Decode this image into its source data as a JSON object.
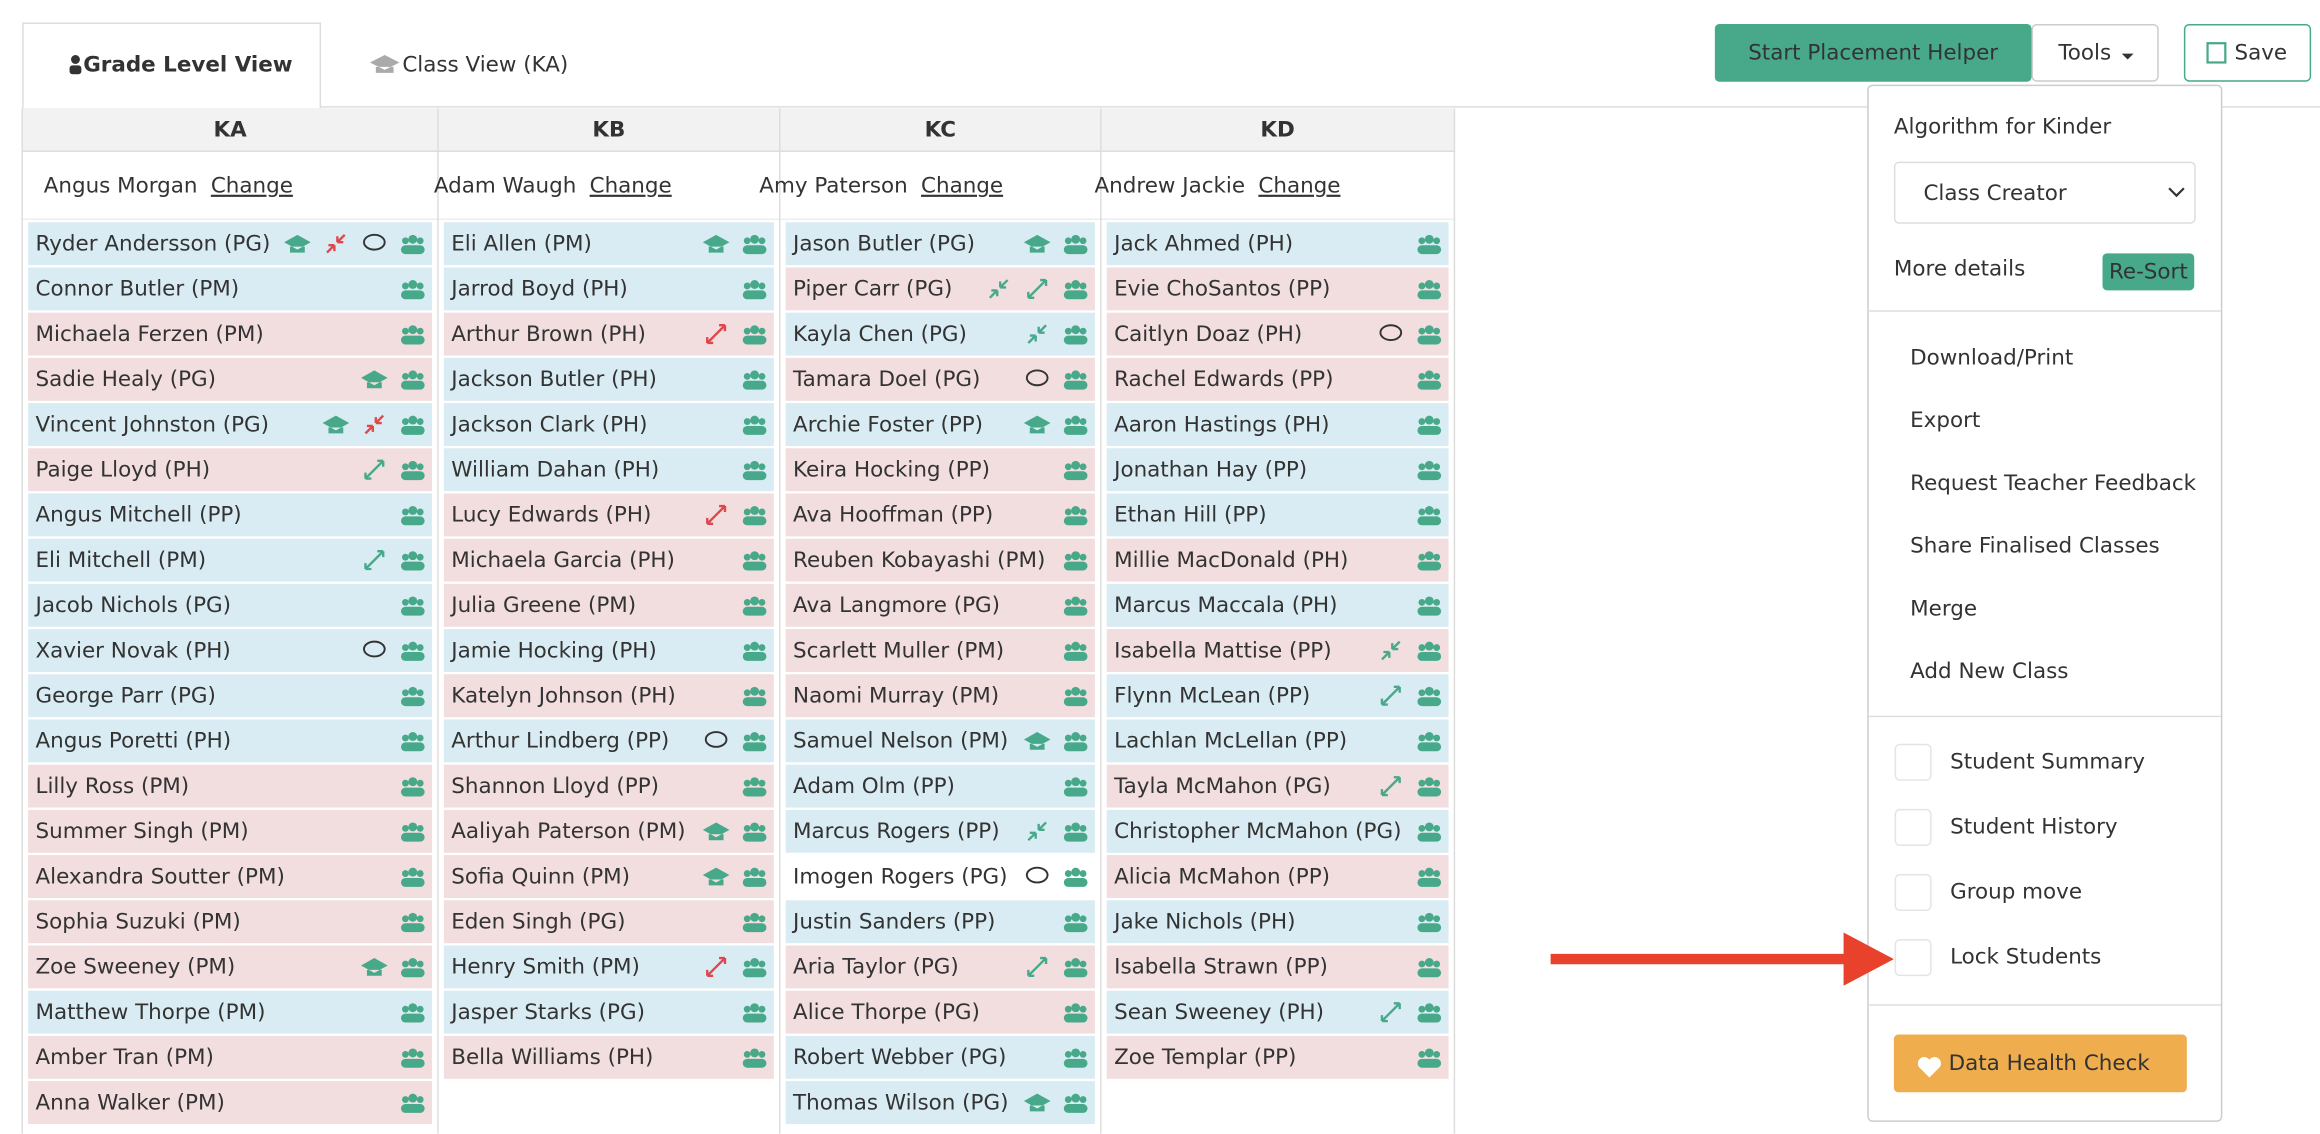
{
  "tabs": [
    {
      "label": "Grade Level View",
      "active": true
    },
    {
      "label": "Class View (KA)",
      "active": false
    }
  ],
  "toolbar": {
    "placement": "Start Placement Helper",
    "tools": "Tools",
    "save": "Save"
  },
  "columns": [
    {
      "code": "KA",
      "teacher": "Angus Morgan",
      "change": "Change",
      "students": [
        {
          "name": "Ryder Andersson (PG)",
          "bg": "blue",
          "icons": [
            "cap",
            "split-red",
            "chat",
            "group"
          ]
        },
        {
          "name": "Connor Butler (PM)",
          "bg": "blue",
          "icons": [
            "group"
          ]
        },
        {
          "name": "Michaela Ferzen (PM)",
          "bg": "pink",
          "icons": [
            "group"
          ]
        },
        {
          "name": "Sadie Healy (PG)",
          "bg": "pink",
          "icons": [
            "cap",
            "group"
          ]
        },
        {
          "name": "Vincent Johnston (PG)",
          "bg": "blue",
          "icons": [
            "cap",
            "split-red",
            "group"
          ]
        },
        {
          "name": "Paige Lloyd (PH)",
          "bg": "pink",
          "icons": [
            "expand-green",
            "group"
          ]
        },
        {
          "name": "Angus Mitchell (PP)",
          "bg": "blue",
          "icons": [
            "group"
          ]
        },
        {
          "name": "Eli Mitchell (PM)",
          "bg": "blue",
          "icons": [
            "expand-green",
            "group"
          ]
        },
        {
          "name": "Jacob Nichols (PG)",
          "bg": "blue",
          "icons": [
            "group"
          ]
        },
        {
          "name": "Xavier Novak (PH)",
          "bg": "blue",
          "icons": [
            "chat",
            "group"
          ]
        },
        {
          "name": "George Parr (PG)",
          "bg": "blue",
          "icons": [
            "group"
          ]
        },
        {
          "name": "Angus Poretti (PH)",
          "bg": "blue",
          "icons": [
            "group"
          ]
        },
        {
          "name": "Lilly Ross (PM)",
          "bg": "pink",
          "icons": [
            "group"
          ]
        },
        {
          "name": "Summer Singh (PM)",
          "bg": "pink",
          "icons": [
            "group"
          ]
        },
        {
          "name": "Alexandra Soutter (PM)",
          "bg": "pink",
          "icons": [
            "group"
          ]
        },
        {
          "name": "Sophia Suzuki (PM)",
          "bg": "pink",
          "icons": [
            "group"
          ]
        },
        {
          "name": "Zoe Sweeney (PM)",
          "bg": "pink",
          "icons": [
            "cap",
            "group"
          ]
        },
        {
          "name": "Matthew Thorpe (PM)",
          "bg": "blue",
          "icons": [
            "group"
          ]
        },
        {
          "name": "Amber Tran (PM)",
          "bg": "pink",
          "icons": [
            "group"
          ]
        },
        {
          "name": "Anna Walker (PM)",
          "bg": "pink",
          "icons": [
            "group"
          ]
        }
      ]
    },
    {
      "code": "KB",
      "teacher": "Adam Waugh",
      "change": "Change",
      "students": [
        {
          "name": "Eli Allen (PM)",
          "bg": "blue",
          "icons": [
            "cap",
            "group"
          ]
        },
        {
          "name": "Jarrod Boyd (PH)",
          "bg": "blue",
          "icons": [
            "group"
          ]
        },
        {
          "name": "Arthur Brown (PH)",
          "bg": "pink",
          "icons": [
            "expand-red",
            "group"
          ]
        },
        {
          "name": "Jackson Butler (PH)",
          "bg": "blue",
          "icons": [
            "group"
          ]
        },
        {
          "name": "Jackson Clark (PH)",
          "bg": "blue",
          "icons": [
            "group"
          ]
        },
        {
          "name": "William Dahan (PH)",
          "bg": "blue",
          "icons": [
            "group"
          ]
        },
        {
          "name": "Lucy Edwards (PH)",
          "bg": "pink",
          "icons": [
            "expand-red",
            "group"
          ]
        },
        {
          "name": "Michaela Garcia (PH)",
          "bg": "pink",
          "icons": [
            "group"
          ]
        },
        {
          "name": "Julia Greene (PM)",
          "bg": "pink",
          "icons": [
            "group"
          ]
        },
        {
          "name": "Jamie Hocking (PH)",
          "bg": "blue",
          "icons": [
            "group"
          ]
        },
        {
          "name": "Katelyn Johnson (PH)",
          "bg": "pink",
          "icons": [
            "group"
          ]
        },
        {
          "name": "Arthur Lindberg (PP)",
          "bg": "blue",
          "icons": [
            "chat",
            "group"
          ]
        },
        {
          "name": "Shannon Lloyd (PP)",
          "bg": "pink",
          "icons": [
            "group"
          ]
        },
        {
          "name": "Aaliyah Paterson (PM)",
          "bg": "pink",
          "icons": [
            "cap",
            "group"
          ]
        },
        {
          "name": "Sofia Quinn (PM)",
          "bg": "pink",
          "icons": [
            "cap",
            "group"
          ]
        },
        {
          "name": "Eden Singh (PG)",
          "bg": "pink",
          "icons": [
            "group"
          ]
        },
        {
          "name": "Henry Smith (PM)",
          "bg": "blue",
          "icons": [
            "expand-red",
            "group"
          ]
        },
        {
          "name": "Jasper Starks (PG)",
          "bg": "blue",
          "icons": [
            "group"
          ]
        },
        {
          "name": "Bella Williams (PH)",
          "bg": "pink",
          "icons": [
            "group"
          ]
        }
      ]
    },
    {
      "code": "KC",
      "teacher": "Amy Paterson",
      "change": "Change",
      "students": [
        {
          "name": "Jason Butler (PG)",
          "bg": "blue",
          "icons": [
            "cap",
            "group"
          ]
        },
        {
          "name": "Piper Carr (PG)",
          "bg": "pink",
          "icons": [
            "split-green",
            "expand-green",
            "group"
          ]
        },
        {
          "name": "Kayla Chen (PG)",
          "bg": "blue",
          "icons": [
            "split-green",
            "group"
          ]
        },
        {
          "name": "Tamara Doel (PG)",
          "bg": "pink",
          "icons": [
            "chat",
            "group"
          ]
        },
        {
          "name": "Archie Foster (PP)",
          "bg": "blue",
          "icons": [
            "cap",
            "group"
          ]
        },
        {
          "name": "Keira Hocking (PP)",
          "bg": "pink",
          "icons": [
            "group"
          ]
        },
        {
          "name": "Ava Hooffman (PP)",
          "bg": "pink",
          "icons": [
            "group"
          ]
        },
        {
          "name": "Reuben Kobayashi (PM)",
          "bg": "pink",
          "icons": [
            "group"
          ]
        },
        {
          "name": "Ava Langmore (PG)",
          "bg": "pink",
          "icons": [
            "group"
          ]
        },
        {
          "name": "Scarlett Muller (PM)",
          "bg": "pink",
          "icons": [
            "group"
          ]
        },
        {
          "name": "Naomi Murray (PM)",
          "bg": "pink",
          "icons": [
            "group"
          ]
        },
        {
          "name": "Samuel Nelson (PM)",
          "bg": "blue",
          "icons": [
            "cap",
            "group"
          ]
        },
        {
          "name": "Adam Olm (PP)",
          "bg": "blue",
          "icons": [
            "group"
          ]
        },
        {
          "name": "Marcus Rogers (PP)",
          "bg": "blue",
          "icons": [
            "split-green",
            "group"
          ]
        },
        {
          "name": "Imogen Rogers (PG)",
          "bg": "white",
          "icons": [
            "chat",
            "group"
          ]
        },
        {
          "name": "Justin Sanders (PP)",
          "bg": "blue",
          "icons": [
            "group"
          ]
        },
        {
          "name": "Aria Taylor (PG)",
          "bg": "pink",
          "icons": [
            "expand-green",
            "group"
          ]
        },
        {
          "name": "Alice Thorpe (PG)",
          "bg": "pink",
          "icons": [
            "group"
          ]
        },
        {
          "name": "Robert Webber (PG)",
          "bg": "blue",
          "icons": [
            "group"
          ]
        },
        {
          "name": "Thomas Wilson (PG)",
          "bg": "blue",
          "icons": [
            "cap",
            "group"
          ]
        }
      ]
    },
    {
      "code": "KD",
      "teacher": "Andrew Jackie",
      "change": "Change",
      "students": [
        {
          "name": "Jack Ahmed (PH)",
          "bg": "blue",
          "icons": [
            "group"
          ]
        },
        {
          "name": "Evie ChoSantos (PP)",
          "bg": "pink",
          "icons": [
            "group"
          ]
        },
        {
          "name": "Caitlyn Doaz (PH)",
          "bg": "pink",
          "icons": [
            "chat",
            "group"
          ]
        },
        {
          "name": "Rachel Edwards (PP)",
          "bg": "pink",
          "icons": [
            "group"
          ]
        },
        {
          "name": "Aaron Hastings (PH)",
          "bg": "blue",
          "icons": [
            "group"
          ]
        },
        {
          "name": "Jonathan Hay (PP)",
          "bg": "blue",
          "icons": [
            "group"
          ]
        },
        {
          "name": "Ethan Hill (PP)",
          "bg": "blue",
          "icons": [
            "group"
          ]
        },
        {
          "name": "Millie MacDonald (PH)",
          "bg": "pink",
          "icons": [
            "group"
          ]
        },
        {
          "name": "Marcus Maccala (PH)",
          "bg": "blue",
          "icons": [
            "group"
          ]
        },
        {
          "name": "Isabella Mattise (PP)",
          "bg": "pink",
          "icons": [
            "split-green",
            "group"
          ]
        },
        {
          "name": "Flynn McLean (PP)",
          "bg": "blue",
          "icons": [
            "expand-green",
            "group"
          ]
        },
        {
          "name": "Lachlan McLellan (PP)",
          "bg": "blue",
          "icons": [
            "group"
          ]
        },
        {
          "name": "Tayla McMahon (PG)",
          "bg": "pink",
          "icons": [
            "expand-green",
            "group"
          ]
        },
        {
          "name": "Christopher McMahon (PG)",
          "bg": "blue",
          "icons": [
            "group"
          ]
        },
        {
          "name": "Alicia McMahon (PP)",
          "bg": "pink",
          "icons": [
            "group"
          ]
        },
        {
          "name": "Jake Nichols (PH)",
          "bg": "blue",
          "icons": [
            "group"
          ]
        },
        {
          "name": "Isabella Strawn (PP)",
          "bg": "pink",
          "icons": [
            "group"
          ]
        },
        {
          "name": "Sean Sweeney (PH)",
          "bg": "blue",
          "icons": [
            "expand-green",
            "group"
          ]
        },
        {
          "name": "Zoe Templar (PP)",
          "bg": "pink",
          "icons": [
            "group"
          ]
        }
      ]
    }
  ],
  "panel": {
    "algorithm_label": "Algorithm for Kinder",
    "algorithm": "Class Creator",
    "more_details": "More details",
    "resort": "Re-Sort",
    "menu": [
      "Download/Print",
      "Export",
      "Request Teacher Feedback",
      "Share Finalised Classes",
      "Merge",
      "Add New Class"
    ],
    "checkboxes": [
      "Student Summary",
      "Student History",
      "Group move",
      "Lock Students"
    ],
    "health_check": "Data Health Check"
  }
}
